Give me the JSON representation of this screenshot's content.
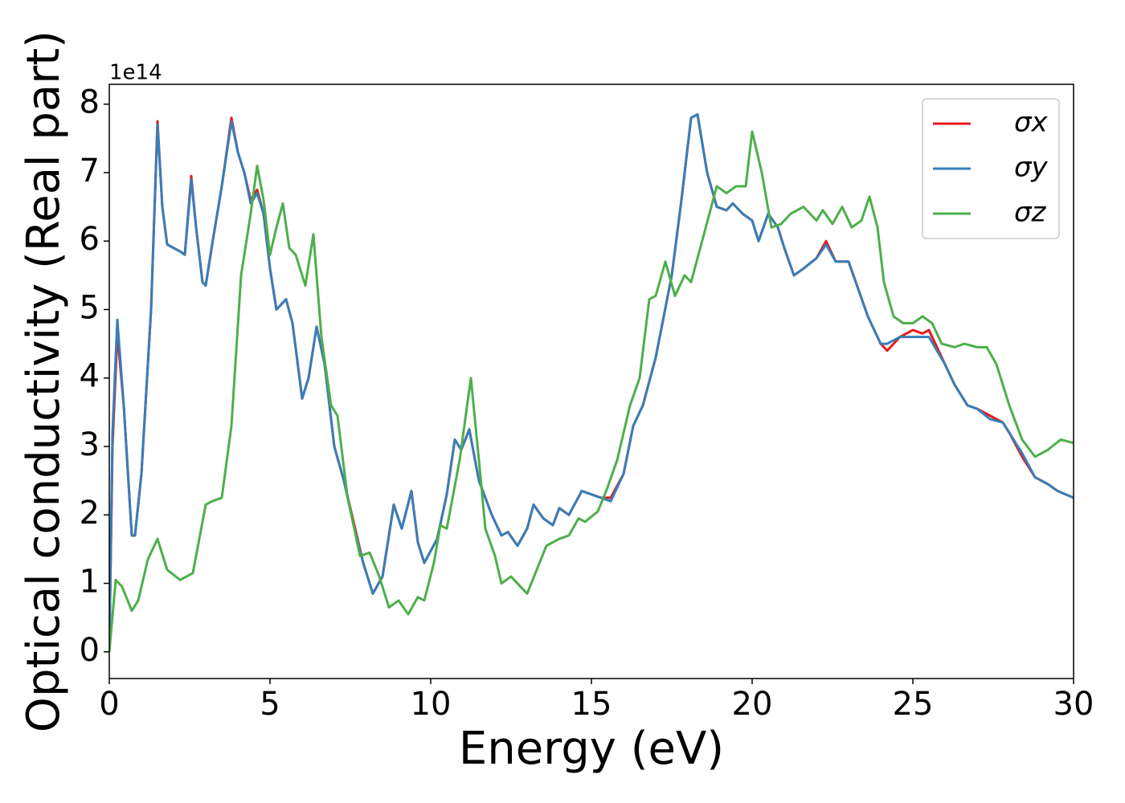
{
  "chart_data": {
    "type": "line",
    "xlabel": "Energy (eV)",
    "ylabel": "Optical conductivity (Real part)",
    "y_offset_label": "1e14",
    "xlim": [
      0,
      30
    ],
    "xticks": [
      0,
      5,
      10,
      15,
      20,
      25,
      30
    ],
    "ylim": [
      -0.39,
      8.29
    ],
    "yticks": [
      0,
      1,
      2,
      3,
      4,
      5,
      6,
      7,
      8
    ],
    "grid": false,
    "legend": "upper right",
    "series": [
      {
        "name": "σx",
        "color": "#e41a1c",
        "x": [
          0,
          0.1,
          0.25,
          0.45,
          0.7,
          0.8,
          1.0,
          1.3,
          1.5,
          1.65,
          1.8,
          2.0,
          2.2,
          2.35,
          2.55,
          2.7,
          2.9,
          3.0,
          3.2,
          3.5,
          3.8,
          4.0,
          4.2,
          4.4,
          4.6,
          4.8,
          5.0,
          5.2,
          5.5,
          5.7,
          6.0,
          6.2,
          6.45,
          6.7,
          7.0,
          7.3,
          7.6,
          7.9,
          8.2,
          8.5,
          8.85,
          9.1,
          9.4,
          9.6,
          9.8,
          10.2,
          10.5,
          10.75,
          10.95,
          11.2,
          11.5,
          11.9,
          12.2,
          12.4,
          12.7,
          13.0,
          13.2,
          13.5,
          13.8,
          14.0,
          14.3,
          14.7,
          15.0,
          15.3,
          15.6,
          16.0,
          16.3,
          16.6,
          17.0,
          17.5,
          17.8,
          18.1,
          18.3,
          18.6,
          18.9,
          19.2,
          19.4,
          19.7,
          20.0,
          20.2,
          20.5,
          20.8,
          21.0,
          21.3,
          21.6,
          22.0,
          22.3,
          22.6,
          23.0,
          23.3,
          23.6,
          24.0,
          24.2,
          24.6,
          25.0,
          25.3,
          25.5,
          26.0,
          26.3,
          26.7,
          27.0,
          27.4,
          27.8,
          28.0,
          28.4,
          28.8,
          29.2,
          29.5,
          30.0
        ],
        "values": [
          0,
          3.0,
          4.65,
          3.6,
          1.7,
          1.7,
          2.6,
          5.0,
          7.75,
          6.5,
          5.95,
          5.9,
          5.85,
          5.8,
          6.95,
          6.2,
          5.4,
          5.35,
          5.95,
          6.8,
          7.8,
          7.3,
          7.0,
          6.6,
          6.75,
          6.4,
          5.6,
          5.0,
          5.15,
          4.8,
          3.7,
          4.0,
          4.75,
          4.2,
          3.0,
          2.5,
          1.9,
          1.3,
          0.85,
          1.1,
          2.15,
          1.8,
          2.35,
          1.6,
          1.3,
          1.65,
          2.3,
          3.1,
          2.95,
          3.25,
          2.5,
          2.0,
          1.7,
          1.75,
          1.55,
          1.8,
          2.15,
          1.95,
          1.85,
          2.1,
          2.0,
          2.35,
          2.3,
          2.25,
          2.25,
          2.6,
          3.3,
          3.6,
          4.3,
          5.5,
          6.6,
          7.8,
          7.85,
          7.0,
          6.5,
          6.45,
          6.55,
          6.4,
          6.3,
          6.0,
          6.4,
          6.2,
          5.9,
          5.5,
          5.6,
          5.75,
          6.0,
          5.7,
          5.7,
          5.3,
          4.9,
          4.5,
          4.4,
          4.6,
          4.7,
          4.65,
          4.7,
          4.2,
          3.9,
          3.6,
          3.55,
          3.45,
          3.35,
          3.2,
          2.85,
          2.55,
          2.45,
          2.35,
          2.25
        ]
      },
      {
        "name": "σy",
        "color": "#377eb8",
        "x": [
          0,
          0.1,
          0.25,
          0.45,
          0.7,
          0.8,
          1.0,
          1.3,
          1.5,
          1.65,
          1.8,
          2.0,
          2.2,
          2.35,
          2.55,
          2.7,
          2.9,
          3.0,
          3.2,
          3.5,
          3.8,
          4.0,
          4.2,
          4.4,
          4.6,
          4.8,
          5.0,
          5.2,
          5.5,
          5.7,
          6.0,
          6.2,
          6.45,
          6.7,
          7.0,
          7.3,
          7.6,
          7.9,
          8.2,
          8.5,
          8.85,
          9.1,
          9.4,
          9.6,
          9.8,
          10.2,
          10.5,
          10.75,
          10.95,
          11.2,
          11.5,
          11.9,
          12.2,
          12.4,
          12.7,
          13.0,
          13.2,
          13.5,
          13.8,
          14.0,
          14.3,
          14.7,
          15.0,
          15.3,
          15.6,
          16.0,
          16.3,
          16.6,
          17.0,
          17.5,
          17.8,
          18.1,
          18.3,
          18.6,
          18.9,
          19.2,
          19.4,
          19.7,
          20.0,
          20.2,
          20.5,
          20.8,
          21.0,
          21.3,
          21.6,
          22.0,
          22.3,
          22.6,
          23.0,
          23.3,
          23.6,
          24.0,
          24.2,
          24.6,
          25.0,
          25.3,
          25.5,
          26.0,
          26.3,
          26.7,
          27.0,
          27.4,
          27.8,
          28.0,
          28.4,
          28.8,
          29.2,
          29.5,
          30.0
        ],
        "values": [
          0,
          3.2,
          4.85,
          3.6,
          1.7,
          1.7,
          2.6,
          5.0,
          7.7,
          6.5,
          5.95,
          5.9,
          5.85,
          5.8,
          6.9,
          6.2,
          5.4,
          5.35,
          5.95,
          6.8,
          7.75,
          7.3,
          7.0,
          6.55,
          6.7,
          6.4,
          5.6,
          5.0,
          5.15,
          4.8,
          3.7,
          4.0,
          4.75,
          4.2,
          3.0,
          2.5,
          1.85,
          1.3,
          0.85,
          1.1,
          2.15,
          1.8,
          2.35,
          1.6,
          1.3,
          1.65,
          2.3,
          3.1,
          2.95,
          3.25,
          2.5,
          2.0,
          1.7,
          1.75,
          1.55,
          1.8,
          2.15,
          1.95,
          1.85,
          2.1,
          2.0,
          2.35,
          2.3,
          2.25,
          2.2,
          2.6,
          3.3,
          3.6,
          4.3,
          5.5,
          6.6,
          7.8,
          7.85,
          7.0,
          6.5,
          6.45,
          6.55,
          6.4,
          6.3,
          6.0,
          6.4,
          6.2,
          5.9,
          5.5,
          5.6,
          5.75,
          5.95,
          5.7,
          5.7,
          5.3,
          4.9,
          4.5,
          4.5,
          4.6,
          4.6,
          4.6,
          4.6,
          4.2,
          3.9,
          3.6,
          3.55,
          3.4,
          3.35,
          3.2,
          2.9,
          2.55,
          2.45,
          2.35,
          2.25
        ]
      },
      {
        "name": "σz",
        "color": "#4daf4a",
        "x": [
          0,
          0.2,
          0.4,
          0.7,
          0.9,
          1.2,
          1.5,
          1.8,
          2.2,
          2.6,
          3.0,
          3.2,
          3.5,
          3.8,
          4.1,
          4.4,
          4.6,
          4.8,
          5.0,
          5.2,
          5.4,
          5.6,
          5.8,
          6.1,
          6.35,
          6.6,
          6.9,
          7.1,
          7.4,
          7.8,
          8.1,
          8.4,
          8.7,
          9.0,
          9.3,
          9.6,
          9.8,
          10.1,
          10.3,
          10.5,
          10.9,
          11.25,
          11.5,
          11.7,
          12.0,
          12.2,
          12.5,
          13.0,
          13.3,
          13.6,
          14.0,
          14.3,
          14.6,
          14.8,
          15.2,
          15.5,
          15.8,
          16.2,
          16.5,
          16.8,
          17.0,
          17.3,
          17.6,
          17.9,
          18.1,
          18.5,
          18.9,
          19.2,
          19.5,
          19.8,
          20.0,
          20.3,
          20.6,
          20.9,
          21.2,
          21.6,
          22.0,
          22.2,
          22.5,
          22.8,
          23.1,
          23.4,
          23.65,
          23.9,
          24.1,
          24.4,
          24.7,
          25.0,
          25.3,
          25.6,
          25.9,
          26.3,
          26.6,
          27.0,
          27.3,
          27.6,
          28.0,
          28.4,
          28.8,
          29.2,
          29.6,
          30.0
        ],
        "values": [
          0,
          1.05,
          0.95,
          0.6,
          0.75,
          1.35,
          1.65,
          1.2,
          1.05,
          1.15,
          2.15,
          2.2,
          2.25,
          3.3,
          5.5,
          6.4,
          7.1,
          6.6,
          5.8,
          6.2,
          6.55,
          5.9,
          5.8,
          5.35,
          6.1,
          4.6,
          3.6,
          3.45,
          2.3,
          1.4,
          1.45,
          1.1,
          0.65,
          0.75,
          0.55,
          0.8,
          0.75,
          1.3,
          1.85,
          1.8,
          2.8,
          4.0,
          2.8,
          1.8,
          1.4,
          1.0,
          1.1,
          0.85,
          1.2,
          1.55,
          1.65,
          1.7,
          1.95,
          1.9,
          2.05,
          2.4,
          2.8,
          3.6,
          4.0,
          5.15,
          5.2,
          5.7,
          5.2,
          5.5,
          5.4,
          6.1,
          6.8,
          6.7,
          6.8,
          6.8,
          7.6,
          7.0,
          6.2,
          6.25,
          6.4,
          6.5,
          6.3,
          6.45,
          6.25,
          6.5,
          6.2,
          6.3,
          6.65,
          6.2,
          5.4,
          4.9,
          4.8,
          4.8,
          4.9,
          4.8,
          4.5,
          4.45,
          4.5,
          4.45,
          4.45,
          4.2,
          3.6,
          3.1,
          2.85,
          2.95,
          3.1,
          3.05
        ]
      }
    ]
  }
}
